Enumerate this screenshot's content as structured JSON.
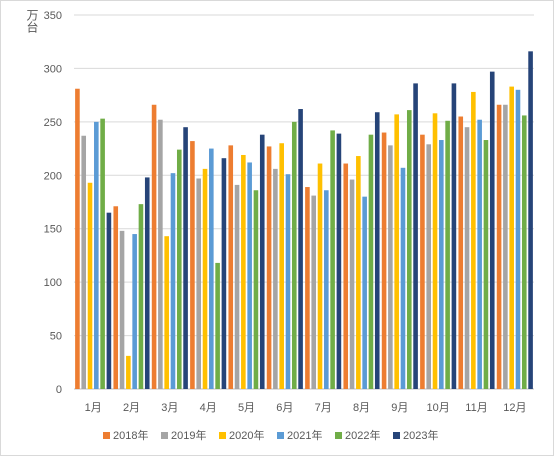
{
  "chart_data": {
    "type": "bar",
    "ylabel": "万台",
    "ylim": [
      0,
      350
    ],
    "yticks": [
      0,
      50,
      100,
      150,
      200,
      250,
      300,
      350
    ],
    "grid": true,
    "legend_position": "bottom",
    "categories": [
      "1月",
      "2月",
      "3月",
      "4月",
      "5月",
      "6月",
      "7月",
      "8月",
      "9月",
      "10月",
      "11月",
      "12月"
    ],
    "series": [
      {
        "name": "2018年",
        "color": "#ED7D31",
        "values": [
          281,
          171,
          266,
          232,
          228,
          227,
          189,
          211,
          240,
          238,
          255,
          266
        ]
      },
      {
        "name": "2019年",
        "color": "#A5A5A5",
        "values": [
          237,
          148,
          252,
          197,
          191,
          206,
          181,
          196,
          228,
          229,
          245,
          266
        ]
      },
      {
        "name": "2020年",
        "color": "#FFC000",
        "values": [
          193,
          31,
          143,
          206,
          219,
          230,
          211,
          218,
          257,
          258,
          278,
          283
        ]
      },
      {
        "name": "2021年",
        "color": "#5B9BD5",
        "values": [
          250,
          145,
          202,
          225,
          212,
          201,
          186,
          180,
          207,
          233,
          252,
          280
        ]
      },
      {
        "name": "2022年",
        "color": "#70AD47",
        "values": [
          253,
          173,
          224,
          118,
          186,
          250,
          242,
          238,
          261,
          251,
          233,
          256
        ]
      },
      {
        "name": "2023年",
        "color": "#264478",
        "values": [
          165,
          198,
          245,
          216,
          238,
          262,
          239,
          259,
          286,
          286,
          297,
          316
        ]
      }
    ]
  }
}
